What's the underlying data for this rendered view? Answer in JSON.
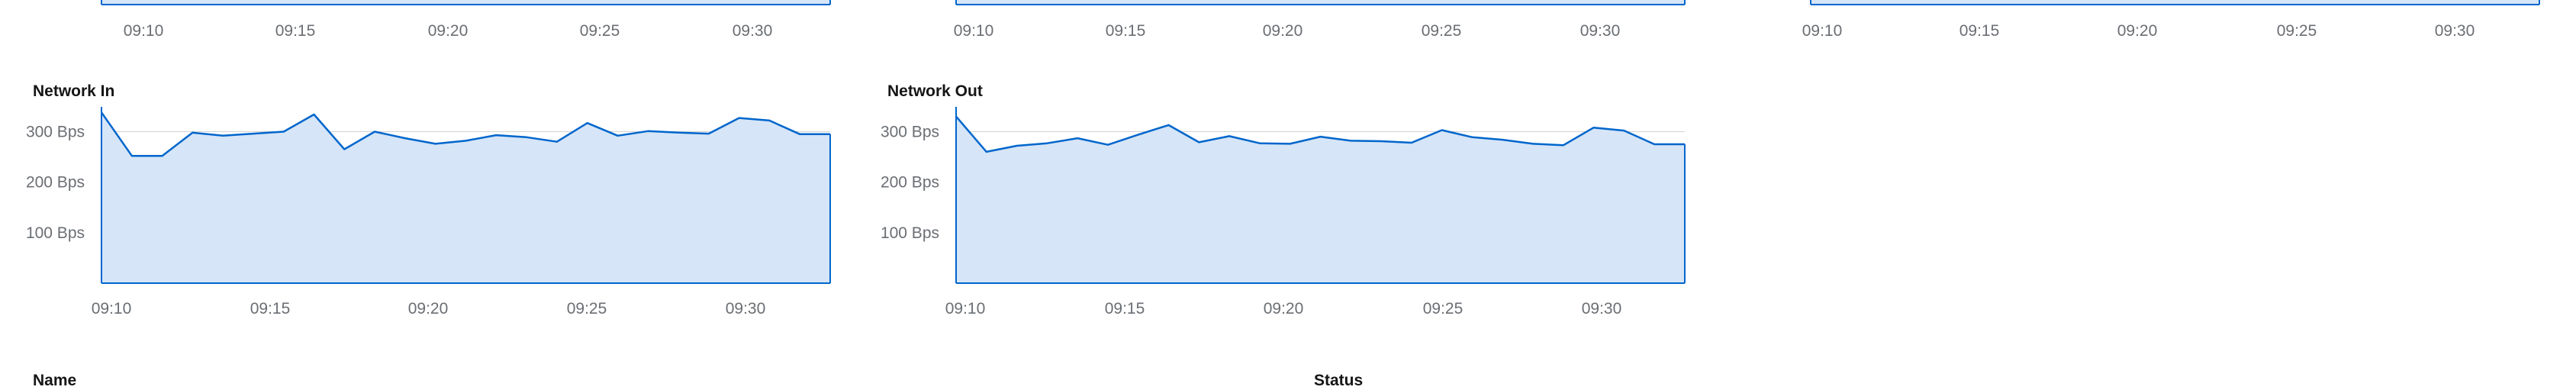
{
  "top_charts": [
    {
      "x_ticks": [
        "09:10",
        "09:15",
        "09:20",
        "09:25",
        "09:30"
      ]
    },
    {
      "x_ticks": [
        "09:10",
        "09:15",
        "09:20",
        "09:25",
        "09:30"
      ]
    },
    {
      "x_ticks": [
        "09:10",
        "09:15",
        "09:20",
        "09:25",
        "09:30"
      ]
    }
  ],
  "charts": [
    {
      "title": "Network In",
      "y_ticks": [
        "300 Bps",
        "200 Bps",
        "100 Bps"
      ]
    },
    {
      "title": "Network Out",
      "y_ticks": [
        "300 Bps",
        "200 Bps",
        "100 Bps"
      ]
    }
  ],
  "table": {
    "columns": [
      "Name",
      "Status"
    ]
  },
  "colors": {
    "line": "#0066cc",
    "fill": "#d6e5f7",
    "grid": "#d2d2d2",
    "tick_text": "#6a6e73"
  },
  "chart_data": [
    {
      "type": "area",
      "title": "Network In",
      "xlabel": "",
      "ylabel": "",
      "unit": "Bps",
      "x_ticks": [
        "09:10",
        "09:15",
        "09:20",
        "09:25",
        "09:30"
      ],
      "ylim": [
        0,
        340
      ],
      "y_ticks": [
        100,
        200,
        300
      ],
      "series": [
        {
          "x": [
            "09:09",
            "09:10",
            "09:11",
            "09:12",
            "09:13",
            "09:14",
            "09:15",
            "09:16",
            "09:17",
            "09:18",
            "09:19",
            "09:20",
            "09:21",
            "09:22",
            "09:23",
            "09:24",
            "09:25",
            "09:26",
            "09:27",
            "09:28",
            "09:29",
            "09:30",
            "09:31",
            "09:32",
            "09:33"
          ],
          "values": [
            338,
            252,
            252,
            298,
            292,
            296,
            300,
            334,
            265,
            300,
            287,
            276,
            282,
            293,
            289,
            280,
            317,
            292,
            301,
            298,
            296,
            327,
            322,
            295,
            295
          ]
        }
      ],
      "grid": true,
      "legend": "none"
    },
    {
      "type": "area",
      "title": "Network Out",
      "xlabel": "",
      "ylabel": "",
      "unit": "Bps",
      "x_ticks": [
        "09:10",
        "09:15",
        "09:20",
        "09:25",
        "09:30"
      ],
      "ylim": [
        0,
        340
      ],
      "y_ticks": [
        100,
        200,
        300
      ],
      "series": [
        {
          "x": [
            "09:09",
            "09:10",
            "09:11",
            "09:12",
            "09:13",
            "09:14",
            "09:15",
            "09:16",
            "09:17",
            "09:18",
            "09:19",
            "09:20",
            "09:21",
            "09:22",
            "09:23",
            "09:24",
            "09:25",
            "09:26",
            "09:27",
            "09:28",
            "09:29",
            "09:30",
            "09:31",
            "09:32",
            "09:33"
          ],
          "values": [
            330,
            260,
            272,
            277,
            287,
            274,
            294,
            313,
            279,
            291,
            277,
            276,
            290,
            282,
            281,
            278,
            303,
            289,
            284,
            276,
            273,
            308,
            302,
            275,
            275
          ]
        }
      ],
      "grid": true,
      "legend": "none"
    }
  ]
}
